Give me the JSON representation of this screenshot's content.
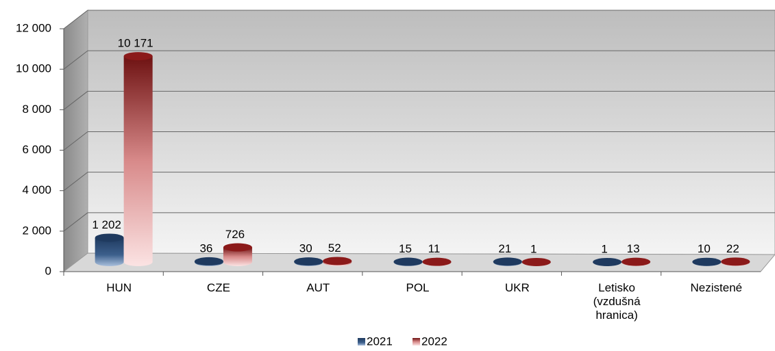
{
  "chart_data": {
    "type": "bar",
    "categories": [
      "HUN",
      "CZE",
      "AUT",
      "POL",
      "UKR",
      "Letisko (vzdušná hranica)",
      "Nezistené"
    ],
    "series": [
      {
        "name": "2021",
        "color": "#1f3a5f",
        "values": [
          1202,
          36,
          30,
          15,
          21,
          1,
          10
        ],
        "value_labels": [
          "1 202",
          "36",
          "30",
          "15",
          "21",
          "1",
          "10"
        ]
      },
      {
        "name": "2022",
        "color": "#8b1a1a",
        "values": [
          10171,
          726,
          52,
          11,
          1,
          13,
          22
        ],
        "value_labels": [
          "10 171",
          "726",
          "52",
          "11",
          "1",
          "13",
          "22"
        ]
      }
    ],
    "ylim": [
      0,
      12000
    ],
    "yticks": [
      0,
      {
        "value": 2000,
        "label": "2 000"
      },
      {
        "value": 4000,
        "label": "4 000"
      },
      {
        "value": 6000,
        "label": "6 000"
      },
      {
        "value": 8000,
        "label": "8 000"
      },
      {
        "value": 10000,
        "label": "10 000"
      },
      {
        "value": 12000,
        "label": "12 000"
      }
    ],
    "grid": true,
    "legend": "bottom"
  }
}
